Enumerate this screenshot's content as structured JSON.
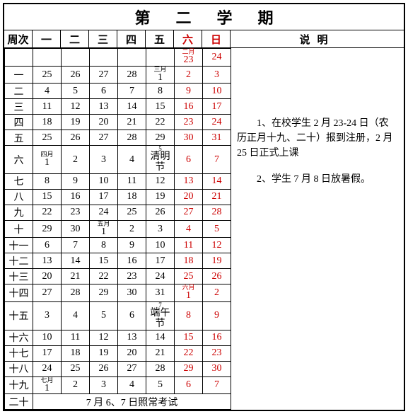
{
  "title": "第二学期",
  "headers": {
    "week": "周次",
    "days": [
      "一",
      "二",
      "三",
      "四",
      "五",
      "六",
      "日"
    ],
    "notes": "说明"
  },
  "colors": {
    "weekend": "#cc0000",
    "border": "#000000",
    "bg": "#ffffff"
  },
  "rows": [
    {
      "week": "",
      "cells": [
        "",
        "",
        "",
        "",
        "",
        {
          "top": "二月",
          "bot": "23",
          "red": true
        },
        {
          "v": "24",
          "red": true
        }
      ]
    },
    {
      "week": "一",
      "cells": [
        "25",
        "26",
        "27",
        "28",
        {
          "top": "三月",
          "bot": "1"
        },
        {
          "v": "2",
          "red": true
        },
        {
          "v": "3",
          "red": true
        }
      ]
    },
    {
      "week": "二",
      "cells": [
        "4",
        "5",
        "6",
        "7",
        "8",
        {
          "v": "9",
          "red": true
        },
        {
          "v": "10",
          "red": true
        }
      ]
    },
    {
      "week": "三",
      "cells": [
        "11",
        "12",
        "13",
        "14",
        "15",
        {
          "v": "16",
          "red": true
        },
        {
          "v": "17",
          "red": true
        }
      ]
    },
    {
      "week": "四",
      "cells": [
        "18",
        "19",
        "20",
        "21",
        "22",
        {
          "v": "23",
          "red": true
        },
        {
          "v": "24",
          "red": true
        }
      ]
    },
    {
      "week": "五",
      "cells": [
        "25",
        "26",
        "27",
        "28",
        "29",
        {
          "v": "30",
          "red": true
        },
        {
          "v": "31",
          "red": true
        }
      ]
    },
    {
      "week": "六",
      "cells": [
        {
          "top": "四月",
          "bot": "1"
        },
        "2",
        "3",
        "4",
        {
          "top": "5",
          "bot": "清明节"
        },
        {
          "v": "6",
          "red": true
        },
        {
          "v": "7",
          "red": true
        }
      ]
    },
    {
      "week": "七",
      "cells": [
        "8",
        "9",
        "10",
        "11",
        "12",
        {
          "v": "13",
          "red": true
        },
        {
          "v": "14",
          "red": true
        }
      ]
    },
    {
      "week": "八",
      "cells": [
        "15",
        "16",
        "17",
        "18",
        "19",
        {
          "v": "20",
          "red": true
        },
        {
          "v": "21",
          "red": true
        }
      ]
    },
    {
      "week": "九",
      "cells": [
        "22",
        "23",
        "24",
        "25",
        "26",
        {
          "v": "27",
          "red": true
        },
        {
          "v": "28",
          "red": true
        }
      ]
    },
    {
      "week": "十",
      "cells": [
        "29",
        "30",
        {
          "top": "五月",
          "bot": "1"
        },
        "2",
        "3",
        {
          "v": "4",
          "red": true
        },
        {
          "v": "5",
          "red": true
        }
      ]
    },
    {
      "week": "十一",
      "cells": [
        "6",
        "7",
        "8",
        "9",
        "10",
        {
          "v": "11",
          "red": true
        },
        {
          "v": "12",
          "red": true
        }
      ]
    },
    {
      "week": "十二",
      "cells": [
        "13",
        "14",
        "15",
        "16",
        "17",
        {
          "v": "18",
          "red": true
        },
        {
          "v": "19",
          "red": true
        }
      ]
    },
    {
      "week": "十三",
      "cells": [
        "20",
        "21",
        "22",
        "23",
        "24",
        {
          "v": "25",
          "red": true
        },
        {
          "v": "26",
          "red": true
        }
      ]
    },
    {
      "week": "十四",
      "cells": [
        "27",
        "28",
        "29",
        "30",
        "31",
        {
          "top": "六月",
          "bot": "1",
          "red": true
        },
        {
          "v": "2",
          "red": true
        }
      ]
    },
    {
      "week": "十五",
      "cells": [
        "3",
        "4",
        "5",
        "6",
        {
          "top": "7",
          "bot": "端午节"
        },
        {
          "v": "8",
          "red": true
        },
        {
          "v": "9",
          "red": true
        }
      ]
    },
    {
      "week": "十六",
      "cells": [
        "10",
        "11",
        "12",
        "13",
        "14",
        {
          "v": "15",
          "red": true
        },
        {
          "v": "16",
          "red": true
        }
      ]
    },
    {
      "week": "十七",
      "cells": [
        "17",
        "18",
        "19",
        "20",
        "21",
        {
          "v": "22",
          "red": true
        },
        {
          "v": "23",
          "red": true
        }
      ]
    },
    {
      "week": "十八",
      "cells": [
        "24",
        "25",
        "26",
        "27",
        "28",
        {
          "v": "29",
          "red": true
        },
        {
          "v": "30",
          "red": true
        }
      ]
    },
    {
      "week": "十九",
      "cells": [
        {
          "top": "七月",
          "bot": "1"
        },
        "2",
        "3",
        "4",
        "5",
        {
          "v": "6",
          "red": true
        },
        {
          "v": "7",
          "red": true
        }
      ]
    }
  ],
  "footer": {
    "week": "二十",
    "text": "7 月 6、7 日照常考试"
  },
  "notes": [
    "1、在校学生 2 月 23-24 日（农历正月十九、二十）报到注册，2 月 25 日正式上课",
    "2、学生 7 月 8 日放暑假。"
  ]
}
